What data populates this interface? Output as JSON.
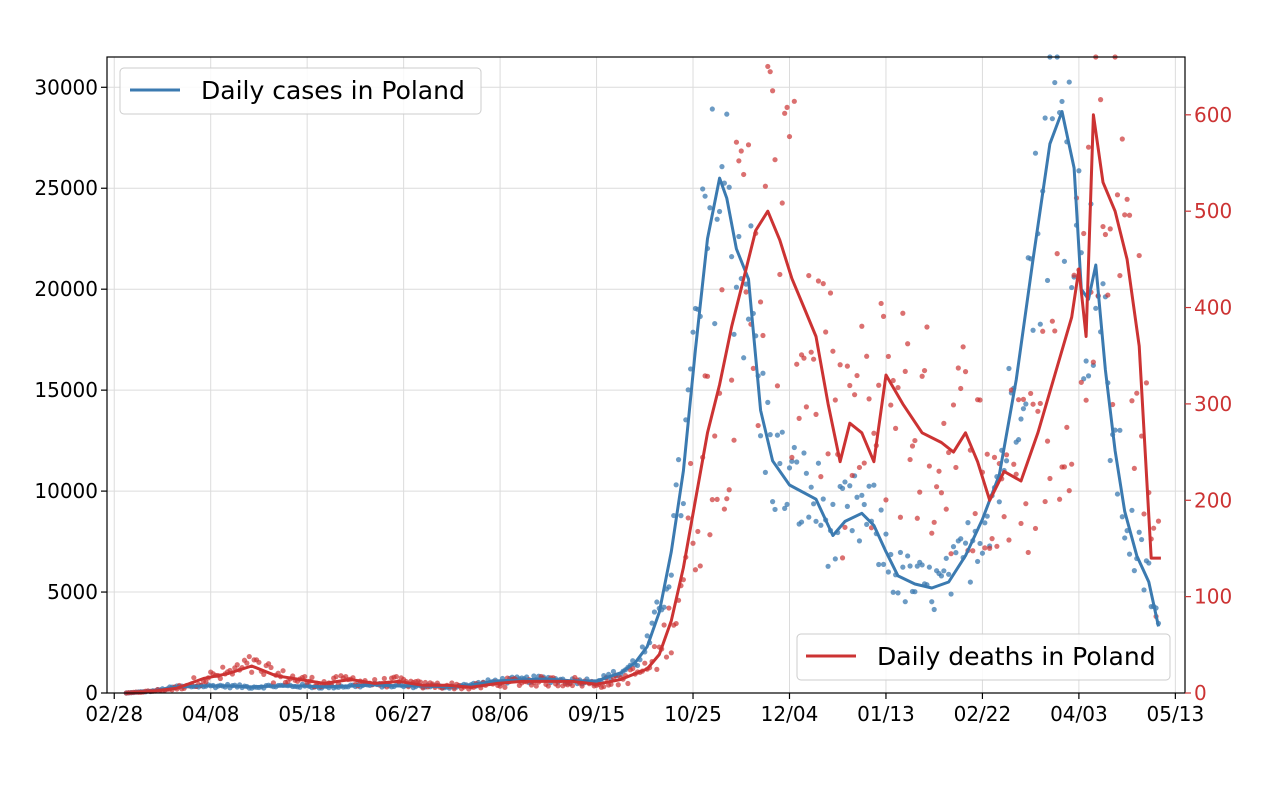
{
  "colors": {
    "cases": "#3b7ab0",
    "deaths": "#cc3333",
    "grid": "#dcdcdc",
    "axis": "#000000",
    "legend_border": "#cccccc"
  },
  "chart_data": {
    "type": "line",
    "x_axis": {
      "type": "date",
      "range": [
        "2020-02-25",
        "2021-05-17"
      ],
      "ticks": [
        "2020-02-28",
        "2020-04-08",
        "2020-05-18",
        "2020-06-27",
        "2020-08-06",
        "2020-09-15",
        "2020-10-25",
        "2020-12-04",
        "2021-01-13",
        "2021-02-22",
        "2021-04-03",
        "2021-05-13"
      ],
      "tick_labels": [
        "02/28",
        "04/08",
        "05/18",
        "06/27",
        "08/06",
        "09/15",
        "10/25",
        "12/04",
        "01/13",
        "02/22",
        "04/03",
        "05/13"
      ]
    },
    "y_left": {
      "range": [
        0,
        31500
      ],
      "ticks": [
        0,
        5000,
        10000,
        15000,
        20000,
        25000,
        30000
      ],
      "tick_labels": [
        "0",
        "5000",
        "10000",
        "15000",
        "20000",
        "25000",
        "30000"
      ]
    },
    "y_right": {
      "range": [
        0,
        660
      ],
      "ticks": [
        0,
        100,
        200,
        300,
        400,
        500,
        600
      ],
      "tick_labels": [
        "0",
        "100",
        "200",
        "300",
        "400",
        "500",
        "600"
      ]
    },
    "grid": true,
    "legend_cases": {
      "label": "Daily cases in Poland",
      "placement": "top-left"
    },
    "legend_deaths": {
      "label": "Daily deaths in Poland",
      "placement": "bottom-right"
    },
    "series": [
      {
        "name": "Daily cases in Poland",
        "axis": "left",
        "dates": [
          "2020-03-04",
          "2020-03-15",
          "2020-03-25",
          "2020-04-05",
          "2020-04-15",
          "2020-04-25",
          "2020-05-05",
          "2020-05-15",
          "2020-05-25",
          "2020-06-05",
          "2020-06-15",
          "2020-06-25",
          "2020-07-05",
          "2020-07-15",
          "2020-07-25",
          "2020-08-05",
          "2020-08-15",
          "2020-08-25",
          "2020-09-05",
          "2020-09-15",
          "2020-09-25",
          "2020-10-01",
          "2020-10-06",
          "2020-10-11",
          "2020-10-16",
          "2020-10-21",
          "2020-10-26",
          "2020-10-31",
          "2020-11-05",
          "2020-11-08",
          "2020-11-12",
          "2020-11-17",
          "2020-11-22",
          "2020-11-27",
          "2020-12-04",
          "2020-12-15",
          "2020-12-22",
          "2020-12-27",
          "2021-01-03",
          "2021-01-08",
          "2021-01-13",
          "2021-01-18",
          "2021-01-25",
          "2021-02-01",
          "2021-02-08",
          "2021-02-15",
          "2021-02-22",
          "2021-03-01",
          "2021-03-08",
          "2021-03-15",
          "2021-03-22",
          "2021-03-27",
          "2021-04-01",
          "2021-04-04",
          "2021-04-07",
          "2021-04-10",
          "2021-04-14",
          "2021-04-18",
          "2021-04-22",
          "2021-04-27",
          "2021-05-02",
          "2021-05-06"
        ],
        "values": [
          0,
          100,
          300,
          350,
          350,
          300,
          350,
          350,
          300,
          350,
          400,
          350,
          350,
          300,
          400,
          600,
          650,
          700,
          600,
          600,
          1000,
          1500,
          2300,
          4000,
          7000,
          11000,
          17000,
          22500,
          25500,
          24500,
          22000,
          20500,
          14000,
          11500,
          10300,
          9600,
          7800,
          8500,
          8900,
          8300,
          7000,
          5800,
          5400,
          5200,
          5500,
          6800,
          8600,
          10800,
          15500,
          21500,
          27200,
          28800,
          26000,
          20000,
          19500,
          21200,
          16000,
          12000,
          9000,
          6800,
          5500,
          3300
        ]
      },
      {
        "name": "Daily deaths in Poland",
        "axis": "right",
        "dates": [
          "2020-03-04",
          "2020-03-15",
          "2020-03-25",
          "2020-04-05",
          "2020-04-15",
          "2020-04-25",
          "2020-05-05",
          "2020-05-15",
          "2020-05-25",
          "2020-06-05",
          "2020-06-15",
          "2020-06-25",
          "2020-07-05",
          "2020-07-15",
          "2020-07-25",
          "2020-08-05",
          "2020-08-15",
          "2020-08-25",
          "2020-09-05",
          "2020-09-15",
          "2020-09-25",
          "2020-10-01",
          "2020-10-06",
          "2020-10-11",
          "2020-10-16",
          "2020-10-21",
          "2020-10-26",
          "2020-10-31",
          "2020-11-05",
          "2020-11-10",
          "2020-11-15",
          "2020-11-20",
          "2020-11-25",
          "2020-11-30",
          "2020-12-05",
          "2020-12-10",
          "2020-12-15",
          "2020-12-20",
          "2020-12-25",
          "2020-12-29",
          "2021-01-03",
          "2021-01-08",
          "2021-01-13",
          "2021-01-20",
          "2021-01-28",
          "2021-02-05",
          "2021-02-10",
          "2021-02-15",
          "2021-02-20",
          "2021-02-25",
          "2021-03-03",
          "2021-03-10",
          "2021-03-17",
          "2021-03-24",
          "2021-03-31",
          "2021-04-03",
          "2021-04-06",
          "2021-04-09",
          "2021-04-13",
          "2021-04-18",
          "2021-04-23",
          "2021-04-28",
          "2021-05-03",
          "2021-05-07"
        ],
        "values": [
          0,
          2,
          5,
          15,
          20,
          28,
          18,
          14,
          10,
          14,
          10,
          12,
          8,
          8,
          6,
          10,
          12,
          12,
          12,
          9,
          14,
          20,
          25,
          40,
          75,
          130,
          200,
          270,
          320,
          380,
          430,
          480,
          500,
          470,
          430,
          400,
          370,
          300,
          240,
          280,
          270,
          240,
          330,
          300,
          270,
          260,
          250,
          270,
          240,
          200,
          230,
          220,
          270,
          330,
          390,
          440,
          370,
          600,
          530,
          500,
          450,
          360,
          140,
          140
        ]
      }
    ]
  }
}
